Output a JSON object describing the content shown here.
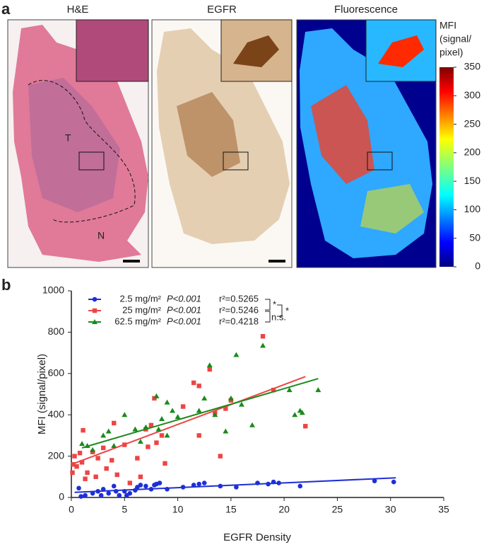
{
  "panel_a": {
    "label": "a",
    "images": [
      {
        "title": "H&E"
      },
      {
        "title": "EGFR"
      },
      {
        "title": "Fluorescence"
      }
    ],
    "annotations": [
      "T",
      "N"
    ],
    "colorbar": {
      "title_lines": [
        "MFI",
        "(signal/",
        "pixel)"
      ],
      "lim": [
        0,
        350
      ],
      "ticks": [
        0,
        50,
        100,
        150,
        200,
        250,
        300,
        350
      ]
    }
  },
  "chart_data": {
    "type": "scatter",
    "panel_label": "b",
    "xlabel": "EGFR Density",
    "ylabel": "MFI (signal/pixel)",
    "xlim": [
      0,
      35
    ],
    "ylim": [
      0,
      1000
    ],
    "xticks": [
      0,
      5,
      10,
      15,
      20,
      25,
      30,
      35
    ],
    "yticks": [
      0,
      200,
      400,
      600,
      800,
      1000
    ],
    "series": [
      {
        "name": "2.5 mg/m²",
        "color": "#1f2fd6",
        "marker": "circle",
        "p": "P<0.001",
        "r2": "r²=0.5265",
        "x": [
          0.7,
          0.9,
          1.3,
          2,
          2.5,
          2.8,
          3,
          3.5,
          4,
          4.2,
          4.5,
          5,
          5.2,
          5.5,
          6,
          6.2,
          6.5,
          7,
          7.5,
          7.8,
          8,
          8.3,
          9,
          10.5,
          11.5,
          12,
          12.5,
          14,
          15.5,
          17.5,
          18.5,
          19,
          19.5,
          21.5,
          28.5,
          30.3
        ],
        "values": [
          45,
          5,
          10,
          20,
          30,
          10,
          40,
          20,
          55,
          30,
          10,
          30,
          10,
          20,
          35,
          50,
          60,
          55,
          40,
          60,
          65,
          70,
          40,
          50,
          60,
          65,
          70,
          55,
          50,
          70,
          65,
          75,
          70,
          55,
          80,
          75
        ],
        "fit": {
          "x": [
            0.3,
            30.5
          ],
          "y": [
            25,
            95
          ]
        }
      },
      {
        "name": "25 mg/m²",
        "color": "#ee4444",
        "marker": "square",
        "p": "P<0.001",
        "r2": "r²=0.5246",
        "x": [
          0.1,
          0.2,
          0.3,
          0.5,
          0.8,
          1,
          1.1,
          1.3,
          1.5,
          2,
          2.3,
          2.5,
          3,
          3.3,
          3.8,
          4,
          4.3,
          5,
          5.5,
          6.2,
          6.5,
          7,
          7.2,
          7.5,
          7.8,
          8,
          8.5,
          8.8,
          10.5,
          11.5,
          12,
          12,
          13,
          13.5,
          14,
          14.5,
          15,
          18,
          19,
          22
        ],
        "values": [
          120,
          160,
          200,
          150,
          215,
          170,
          325,
          90,
          120,
          220,
          100,
          190,
          240,
          140,
          180,
          360,
          110,
          255,
          70,
          190,
          100,
          330,
          245,
          350,
          480,
          265,
          300,
          165,
          440,
          555,
          540,
          300,
          620,
          410,
          200,
          430,
          470,
          780,
          520,
          345
        ],
        "fit": {
          "x": [
            0,
            22
          ],
          "y": [
            160,
            585
          ]
        }
      },
      {
        "name": "62.5 mg/m²",
        "color": "#1a8a1a",
        "marker": "triangle",
        "p": "P<0.001",
        "r2": "r²=0.4218",
        "x": [
          1,
          1.5,
          2,
          3,
          3.5,
          4,
          5,
          6,
          6.5,
          7,
          8,
          8.2,
          8.5,
          9,
          9,
          9.5,
          10,
          12,
          12.5,
          13,
          13.5,
          14.5,
          15,
          15.5,
          16,
          17,
          18,
          20.5,
          21,
          21.5,
          21.7,
          23.2
        ],
        "values": [
          260,
          250,
          230,
          300,
          320,
          250,
          400,
          330,
          270,
          340,
          490,
          330,
          380,
          460,
          300,
          420,
          390,
          420,
          480,
          640,
          400,
          320,
          480,
          690,
          450,
          350,
          735,
          520,
          400,
          420,
          410,
          520
        ],
        "fit": {
          "x": [
            1,
            23.2
          ],
          "y": [
            240,
            575
          ]
        }
      }
    ],
    "significance": [
      "*",
      "n.s.",
      "*"
    ]
  }
}
